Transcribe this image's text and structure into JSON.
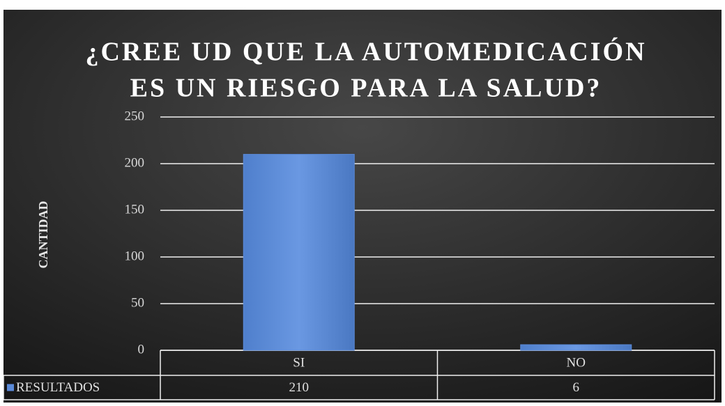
{
  "chart_data": {
    "type": "bar",
    "title": [
      "¿CREE UD QUE LA AUTOMEDICACIÓN",
      "ES UN RIESGO PARA LA SALUD?"
    ],
    "y_label": "CANTIDAD",
    "categories": [
      "SI",
      "NO"
    ],
    "series": [
      {
        "name": "RESULTADOS",
        "color": "#5b8ad8",
        "values": [
          210,
          6
        ]
      }
    ],
    "ylim": [
      0,
      250
    ],
    "yticks": [
      0,
      50,
      100,
      150,
      200,
      250
    ],
    "grid": true,
    "data_table": true
  }
}
